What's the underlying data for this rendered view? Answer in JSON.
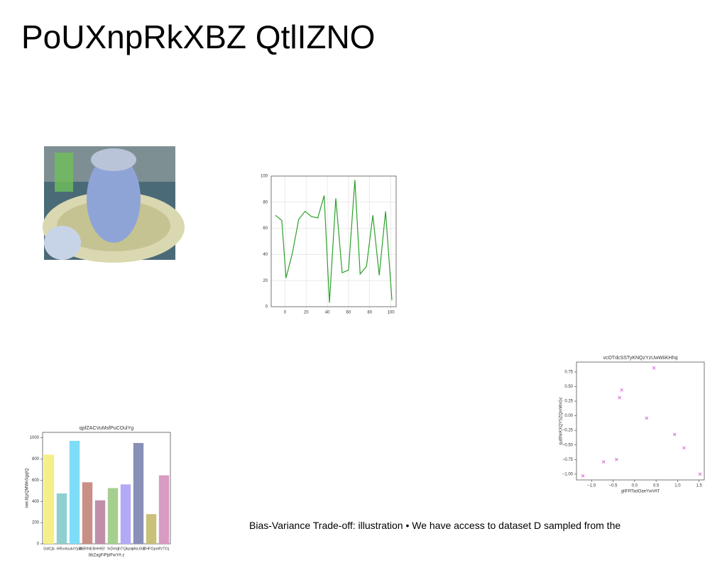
{
  "title": "PoUXnpRkXBZ QtlIZNO",
  "caption": "Bias-Variance Trade-off: illustration • We have access to dataset D sampled from the",
  "chart_data": [
    {
      "type": "line",
      "color": "#2ca02c",
      "grid": true,
      "x": [
        -9,
        -3,
        1,
        7,
        13,
        19,
        25,
        31,
        37,
        42,
        48,
        54,
        60,
        66,
        71,
        77,
        83,
        89,
        95,
        101
      ],
      "values": [
        70,
        66,
        22,
        41,
        67,
        73,
        69,
        68,
        85,
        3,
        83,
        26,
        28,
        97,
        25,
        31,
        70,
        24,
        73,
        5
      ],
      "xlim": [
        -13,
        105
      ],
      "xticks": [
        0,
        20,
        40,
        60,
        80,
        100
      ],
      "ylim": [
        0,
        100
      ],
      "yticks": [
        0,
        20,
        40,
        60,
        80,
        100
      ]
    },
    {
      "type": "bar",
      "title": "qpfZACVuMsfPuCOulYg",
      "x_label": "bbZagFiPjdFwYA z",
      "y_label": "nwrJdjzQMWnSgqIQ",
      "categories": [
        "GdCjb",
        "HRvxl",
        "sukiYjdB",
        "ABRNEB",
        "HHEf",
        "fxDelo",
        "jhTQkpm",
        "pNcIXB",
        "ZHFGpm",
        "fVTOj"
      ],
      "values": [
        840,
        475,
        970,
        580,
        410,
        525,
        560,
        950,
        280,
        645
      ],
      "colors": [
        "#f5ef8a",
        "#8ecfcf",
        "#7ddcf7",
        "#c98f86",
        "#bf8fa8",
        "#a5cf8f",
        "#b2aaf7",
        "#8890b8",
        "#c9c07a",
        "#d89bc2"
      ],
      "ylim": [
        0,
        1050
      ],
      "yticks": [
        0,
        200,
        400,
        600,
        800,
        1000
      ]
    },
    {
      "type": "scatter",
      "title": "vcOTdcSSTyKNQzYzUwWiiKHhq",
      "x_label": "gltFRTadOaeYwVAT",
      "y_label": "quBNrKXQYSZQmWxGc",
      "color": "#da70d6",
      "x": [
        -1.2,
        -0.72,
        -0.42,
        -0.35,
        -0.3,
        0.28,
        0.45,
        0.93,
        1.15,
        1.52
      ],
      "values": [
        -1.03,
        -0.79,
        -0.75,
        0.31,
        0.44,
        -0.04,
        0.82,
        -0.32,
        -0.55,
        -1.0
      ],
      "xlim": [
        -1.35,
        1.62
      ],
      "xticks": [
        {
          "value": -1,
          "label": "−1.0"
        },
        {
          "value": -0.5,
          "label": "−0.5"
        },
        {
          "value": 0,
          "label": "0.0"
        },
        {
          "value": 0.5,
          "label": "0.5"
        },
        {
          "value": 1,
          "label": "1.0"
        },
        {
          "value": 1.5,
          "label": "1.5"
        }
      ],
      "ylim": [
        -1.1,
        0.92
      ],
      "yticks": [
        {
          "value": -1,
          "label": "−1.00"
        },
        {
          "value": -0.75,
          "label": "−0.75"
        },
        {
          "value": -0.5,
          "label": "−0.50"
        },
        {
          "value": -0.25,
          "label": "−0.25"
        },
        {
          "value": 0,
          "label": "0.00"
        },
        {
          "value": 0.25,
          "label": "0.25"
        },
        {
          "value": 0.5,
          "label": "0.50"
        },
        {
          "value": 0.75,
          "label": "0.75"
        }
      ]
    }
  ]
}
